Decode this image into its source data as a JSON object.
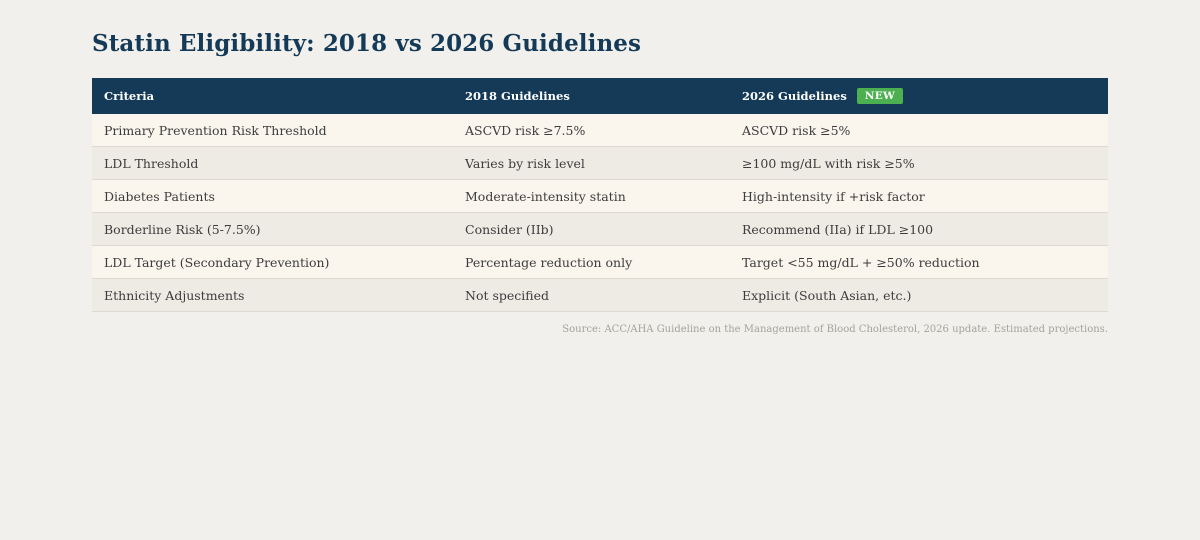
{
  "title": "Statin Eligibility: 2018 vs 2026 Guidelines",
  "table": {
    "headers": {
      "criteria": "Criteria",
      "g2018": "2018 Guidelines",
      "g2026": "2026 Guidelines",
      "badge": "NEW"
    },
    "rows": [
      {
        "criteria": "Primary Prevention Risk Threshold",
        "g2018": "ASCVD risk ≥7.5%",
        "g2026": "ASCVD risk ≥5%"
      },
      {
        "criteria": "LDL Threshold",
        "g2018": "Varies by risk level",
        "g2026": "≥100 mg/dL with risk ≥5%"
      },
      {
        "criteria": "Diabetes Patients",
        "g2018": "Moderate-intensity statin",
        "g2026": "High-intensity if +risk factor"
      },
      {
        "criteria": "Borderline Risk (5-7.5%)",
        "g2018": "Consider (IIb)",
        "g2026": "Recommend (IIa) if LDL ≥100"
      },
      {
        "criteria": "LDL Target (Secondary Prevention)",
        "g2018": "Percentage reduction only",
        "g2026": "Target <55 mg/dL + ≥50% reduction"
      },
      {
        "criteria": "Ethnicity Adjustments",
        "g2018": "Not specified",
        "g2026": "Explicit (South Asian, etc.)"
      }
    ]
  },
  "source": "Source: ACC/AHA Guideline on the Management of Blood Cholesterol, 2026 update. Estimated projections.",
  "colors": {
    "header_bg": "#143a57",
    "badge_bg": "#4caf50",
    "row_odd": "#faf6ee",
    "row_even": "#eeebe5"
  }
}
